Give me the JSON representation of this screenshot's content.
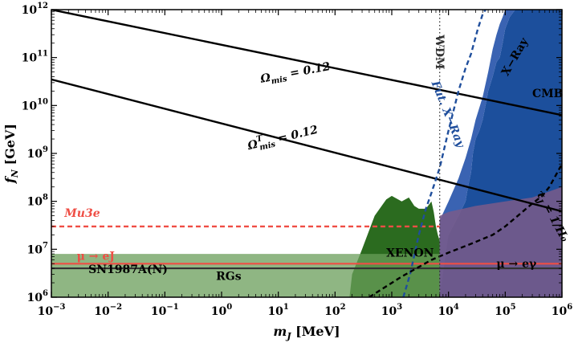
{
  "chart_data": {
    "type": "line",
    "xlabel_main": "m",
    "xlabel_sub": "J",
    "xlabel_unit": " [MeV]",
    "ylabel_main": "f",
    "ylabel_sub": "N",
    "ylabel_unit": " [GeV]",
    "x_scale": "log",
    "y_scale": "log",
    "xlim": [
      0.001,
      1000000
    ],
    "ylim": [
      1000000,
      1000000000000
    ],
    "x_ticks": [
      {
        "value": 0.001,
        "base": "10",
        "exp": "−3"
      },
      {
        "value": 0.01,
        "base": "10",
        "exp": "−2"
      },
      {
        "value": 0.1,
        "base": "10",
        "exp": "−1"
      },
      {
        "value": 1,
        "base": "10",
        "exp": "0"
      },
      {
        "value": 10,
        "base": "10",
        "exp": "1"
      },
      {
        "value": 100,
        "base": "10",
        "exp": "2"
      },
      {
        "value": 1000,
        "base": "10",
        "exp": "3"
      },
      {
        "value": 10000,
        "base": "10",
        "exp": "4"
      },
      {
        "value": 100000,
        "base": "10",
        "exp": "5"
      },
      {
        "value": 1000000,
        "base": "10",
        "exp": "6"
      }
    ],
    "y_ticks": [
      {
        "value": 1000000,
        "base": "10",
        "exp": "6"
      },
      {
        "value": 10000000,
        "base": "10",
        "exp": "7"
      },
      {
        "value": 100000000,
        "base": "10",
        "exp": "8"
      },
      {
        "value": 1000000000,
        "base": "10",
        "exp": "9"
      },
      {
        "value": 10000000000,
        "base": "10",
        "exp": "10"
      },
      {
        "value": 100000000000,
        "base": "10",
        "exp": "11"
      },
      {
        "value": 1000000000000,
        "base": "10",
        "exp": "12"
      }
    ],
    "lines": [
      {
        "style": "solid",
        "color": "#000000",
        "points": [
          [
            0.001,
            1000000000000
          ],
          [
            1000000,
            6300000000
          ]
        ],
        "label": {
          "main": "Ω",
          "sub": "mis",
          "sup": "",
          "rest": " = 0.12",
          "x": 5,
          "y": 30000000000,
          "angle": 10.5
        }
      },
      {
        "style": "solid",
        "color": "#000000",
        "points": [
          [
            0.001,
            35000000000
          ],
          [
            1000000,
            62000000
          ]
        ],
        "label": {
          "main": "Ω",
          "sub": "mis",
          "sup": "T",
          "rest": " = 0.12",
          "x": 3,
          "y": 1200000000,
          "angle": 13.5
        }
      },
      {
        "style": "dashed",
        "color": "#ef4e45",
        "points": [
          [
            0.001,
            30000000
          ],
          [
            7000,
            30000000
          ]
        ],
        "label": {
          "main": "Mu3e",
          "sub": "",
          "sup": "",
          "rest": "",
          "x": 0.0017,
          "y": 47000000,
          "angle": 0
        }
      },
      {
        "style": "dashed",
        "color": "#1f4e9c",
        "points": [
          [
            1600,
            1000000
          ],
          [
            2100,
            3000000
          ],
          [
            3000,
            20000000
          ],
          [
            4000,
            70000000
          ],
          [
            5000,
            150000000
          ],
          [
            7000,
            500000000
          ],
          [
            10000,
            3000000000
          ],
          [
            15000,
            20000000000
          ],
          [
            20000,
            60000000000
          ],
          [
            25000,
            120000000000
          ],
          [
            33000,
            400000000000
          ],
          [
            40000,
            800000000000
          ],
          [
            45000,
            1000000000000
          ]
        ],
        "label": {
          "main": "Fut. X−Ray",
          "sub": "",
          "sup": "",
          "rest": "",
          "x": 5000,
          "y": 30000000000,
          "angle": -68
        }
      },
      {
        "style": "dashed",
        "color": "#000000",
        "points": [
          [
            400,
            1000000
          ],
          [
            1500,
            2700000
          ],
          [
            5000,
            6000000
          ],
          [
            10000,
            8500000
          ],
          [
            25000,
            13000000
          ],
          [
            60000,
            20000000
          ],
          [
            100000,
            30000000
          ],
          [
            200000,
            60000000
          ],
          [
            300000,
            90000000
          ],
          [
            450000,
            130000000
          ],
          [
            600000,
            200000000
          ],
          [
            1000000,
            600000000
          ]
        ],
        "label": {
          "main": "τ",
          "sub": "J",
          "sup": "",
          "rest": " = 1/H₀",
          "x": 350000,
          "y": 150000000,
          "angle": -62
        }
      },
      {
        "style": "dotted",
        "color": "#333333",
        "points": [
          [
            7000,
            1000000
          ],
          [
            7000,
            1000000000000
          ]
        ],
        "label": {
          "main": "WDM",
          "sub": "",
          "sup": "",
          "rest": "",
          "x": 6000,
          "y": 300000000000,
          "angle": -90
        }
      }
    ],
    "regions": [
      {
        "color": "#1c4f9c",
        "opacity": 1.0,
        "points": [
          [
            2500,
            1000000
          ],
          [
            3000,
            3000000
          ],
          [
            4000,
            5000000
          ],
          [
            7000,
            7000000
          ],
          [
            10000,
            20000000
          ],
          [
            15000,
            50000000
          ],
          [
            20000,
            100000000
          ],
          [
            22000,
            200000000
          ],
          [
            25000,
            400000000
          ],
          [
            27000,
            1000000000
          ],
          [
            30000,
            2000000000
          ],
          [
            35000,
            3000000000
          ],
          [
            40000,
            5000000000
          ],
          [
            45000,
            10000000000
          ],
          [
            50000,
            20000000000
          ],
          [
            60000,
            40000000000
          ],
          [
            70000,
            80000000000
          ],
          [
            80000,
            100000000000
          ],
          [
            90000,
            200000000000
          ],
          [
            100000,
            400000000000
          ],
          [
            120000,
            700000000000
          ],
          [
            150000,
            1000000000000
          ],
          [
            1000000,
            1000000000000
          ],
          [
            1000000,
            1000000
          ]
        ]
      },
      {
        "color": "#3a63b2",
        "opacity": 1.0,
        "points": [
          [
            7000,
            1000000
          ],
          [
            7000,
            40000000
          ],
          [
            10000,
            100000000
          ],
          [
            15000,
            300000000
          ],
          [
            20000,
            800000000
          ],
          [
            25000,
            2000000000
          ],
          [
            30000,
            5000000000
          ],
          [
            40000,
            15000000000
          ],
          [
            50000,
            50000000000
          ],
          [
            60000,
            150000000000
          ],
          [
            70000,
            300000000000
          ],
          [
            80000,
            500000000000
          ],
          [
            90000,
            700000000000
          ],
          [
            100000,
            1000000000000
          ],
          [
            150000,
            1000000000000
          ],
          [
            120000,
            700000000000
          ],
          [
            100000,
            400000000000
          ],
          [
            90000,
            200000000000
          ],
          [
            80000,
            100000000000
          ],
          [
            70000,
            80000000000
          ],
          [
            60000,
            40000000000
          ],
          [
            50000,
            20000000000
          ],
          [
            45000,
            10000000000
          ],
          [
            40000,
            5000000000
          ],
          [
            35000,
            3000000000
          ],
          [
            30000,
            2000000000
          ],
          [
            27000,
            1000000000
          ],
          [
            25000,
            400000000
          ],
          [
            22000,
            200000000
          ],
          [
            20000,
            100000000
          ],
          [
            15000,
            50000000
          ],
          [
            10000,
            20000000
          ]
        ]
      },
      {
        "color": "#2b6b1f",
        "opacity": 1.0,
        "points": [
          [
            180,
            1000000
          ],
          [
            200,
            3000000
          ],
          [
            300,
            10000000
          ],
          [
            500,
            50000000
          ],
          [
            800,
            110000000
          ],
          [
            1000,
            130000000
          ],
          [
            1500,
            100000000
          ],
          [
            2000,
            120000000
          ],
          [
            2500,
            80000000
          ],
          [
            3000,
            70000000
          ],
          [
            4000,
            70000000
          ],
          [
            5000,
            100000000
          ],
          [
            5500,
            60000000
          ],
          [
            6000,
            30000000
          ],
          [
            6500,
            20000000
          ],
          [
            7000,
            15000000
          ],
          [
            7000,
            1000000
          ]
        ]
      },
      {
        "color": "#6a9e5a",
        "opacity": 0.75,
        "points": [
          [
            0.001,
            1000000
          ],
          [
            0.001,
            8000000
          ],
          [
            7000,
            8000000
          ],
          [
            7000,
            1000000
          ]
        ]
      },
      {
        "color": "#7a5a8a",
        "opacity": 0.85,
        "points": [
          [
            7000,
            1000000
          ],
          [
            7000,
            50000000
          ],
          [
            10000,
            60000000
          ],
          [
            30000,
            80000000
          ],
          [
            100000,
            100000000
          ],
          [
            300000,
            120000000
          ],
          [
            1000000,
            200000000
          ],
          [
            1000000,
            1000000
          ]
        ]
      }
    ],
    "hlines": [
      {
        "y": 5000000,
        "color": "#ef4e45",
        "width": 2.2
      },
      {
        "y": 4000000,
        "color": "#333333",
        "width": 2.2
      }
    ],
    "region_labels": [
      {
        "text": "RGs",
        "x": 0.8,
        "y": 2300000,
        "color": "#000000",
        "size": 15
      },
      {
        "text": "SN1987A(N)",
        "x": 0.0045,
        "y": 3200000,
        "color": "#000000",
        "size": 11
      },
      {
        "text": "μ → eJ",
        "x": 0.0028,
        "y": 6000000,
        "color": "#ef4e45",
        "size": 10
      },
      {
        "text": "XENON",
        "x": 800,
        "y": 7000000,
        "color": "#000000",
        "size": 15
      },
      {
        "text": "μ → eγ",
        "x": 70000,
        "y": 4200000,
        "color": "#000000",
        "size": 15
      },
      {
        "text": "CMB",
        "x": 300000,
        "y": 15000000000,
        "color": "#000000",
        "size": 15
      },
      {
        "text": "X−Ray",
        "x": 110000,
        "y": 40000000000,
        "color": "#000000",
        "size": 15,
        "angle": -60
      }
    ]
  }
}
